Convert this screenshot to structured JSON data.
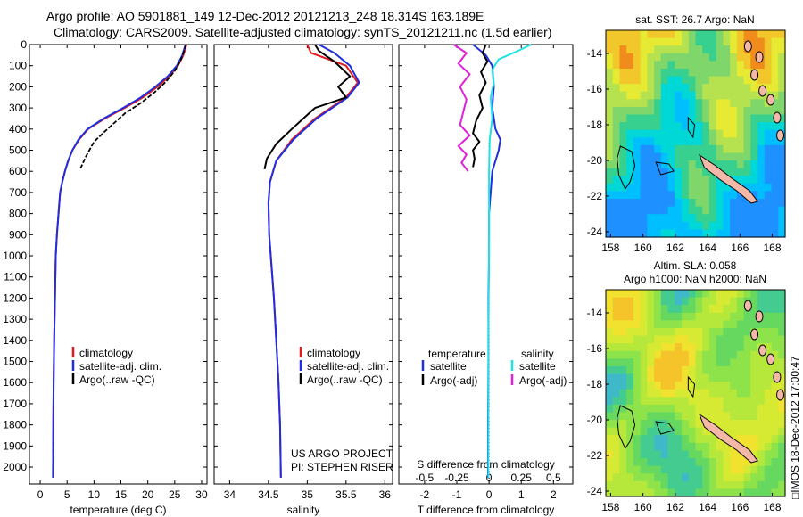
{
  "figure": {
    "title_line1": "Argo profile: AO 5901881_149 12-Dec-2012 20121213_248 18.314S 163.189E",
    "title_line2": "Climatology: CARS2009. Satellite-adjusted climatology: synTS_20121211.nc (1.5d earlier)",
    "side_stamp": "□IMOS 18-Dec-2012 17:00:47",
    "colors": {
      "climatology": "#e31a1c",
      "satellite": "#1f2fe0",
      "argo": "#000000",
      "salinity_satellite": "#22e0e8",
      "salinity_argo": "#e020d8"
    }
  },
  "chart_data": [
    {
      "type": "line",
      "panel": "temperature",
      "xlabel": "temperature (deg C)",
      "x_ticks": [
        0,
        5,
        10,
        15,
        20,
        25,
        30
      ],
      "xlim": [
        -2,
        31
      ],
      "ylim": [
        2080,
        0
      ],
      "y_ticks": [
        0,
        100,
        200,
        300,
        400,
        500,
        600,
        700,
        800,
        900,
        1000,
        1100,
        1200,
        1300,
        1400,
        1500,
        1600,
        1700,
        1800,
        1900,
        2000
      ],
      "legend": [
        "climatology",
        "satellite-adj. clim.",
        "Argo(..raw -QC)"
      ],
      "series": [
        {
          "name": "climatology",
          "x": [
            27.2,
            26.6,
            25.6,
            24.0,
            21.8,
            19.1,
            15.7,
            12.0,
            8.9,
            7.2,
            6.0,
            5.2,
            4.6,
            4.1,
            3.7,
            3.4,
            3.1,
            2.9,
            2.75,
            2.6,
            2.5,
            2.42,
            2.38
          ],
          "y": [
            0,
            50,
            100,
            150,
            200,
            250,
            300,
            350,
            400,
            450,
            500,
            550,
            600,
            650,
            700,
            800,
            900,
            1000,
            1200,
            1400,
            1600,
            1800,
            2050
          ]
        },
        {
          "name": "satellite-adj. clim.",
          "x": [
            27.0,
            26.4,
            25.4,
            23.7,
            21.4,
            18.7,
            15.4,
            11.8,
            8.8,
            7.1,
            6.0,
            5.2,
            4.6,
            4.1,
            3.7,
            3.4,
            3.1,
            2.9,
            2.75,
            2.6,
            2.5,
            2.42,
            2.38
          ],
          "y": [
            0,
            50,
            100,
            150,
            200,
            250,
            300,
            350,
            400,
            450,
            500,
            550,
            600,
            650,
            700,
            800,
            900,
            1000,
            1200,
            1400,
            1600,
            1800,
            2050
          ]
        },
        {
          "name": "Argo(..raw -QC)",
          "x": [
            27.1,
            26.8,
            26.1,
            25.0,
            23.4,
            21.3,
            18.8,
            15.8,
            12.5,
            10.0,
            8.5,
            7.5
          ],
          "y": [
            0,
            25,
            75,
            125,
            175,
            225,
            275,
            325,
            400,
            460,
            530,
            585
          ]
        }
      ]
    },
    {
      "type": "line",
      "panel": "salinity",
      "xlabel": "salinity",
      "x_ticks": [
        34,
        34.5,
        35,
        35.5,
        36
      ],
      "xlim": [
        33.8,
        36.1
      ],
      "ylim": [
        2080,
        0
      ],
      "legend": [
        "climatology",
        "satellite-adj. clim.",
        "Argo(..raw -QC)"
      ],
      "annotations": [
        "US ARGO PROJECT",
        "PI: STEPHEN RISER"
      ],
      "series": [
        {
          "name": "climatology",
          "x": [
            35.0,
            35.05,
            35.5,
            35.65,
            35.5,
            35.1,
            34.8,
            34.6,
            34.52,
            34.5,
            34.51,
            34.53,
            34.57,
            34.6,
            34.63,
            34.65,
            34.66
          ],
          "y": [
            0,
            40,
            100,
            180,
            250,
            350,
            450,
            550,
            650,
            750,
            900,
            1000,
            1200,
            1400,
            1600,
            1800,
            2050
          ]
        },
        {
          "name": "satellite-adj. clim.",
          "x": [
            35.15,
            35.35,
            35.55,
            35.67,
            35.52,
            35.12,
            34.82,
            34.6,
            34.52,
            34.5,
            34.51,
            34.53,
            34.57,
            34.6,
            34.63,
            34.65,
            34.66
          ],
          "y": [
            0,
            40,
            100,
            180,
            250,
            350,
            450,
            550,
            650,
            750,
            900,
            1000,
            1200,
            1400,
            1600,
            1800,
            2050
          ]
        },
        {
          "name": "Argo(..raw -QC)",
          "x": [
            35.1,
            35.15,
            35.35,
            35.55,
            35.4,
            35.5,
            35.1,
            34.8,
            34.6,
            34.48,
            34.45
          ],
          "y": [
            0,
            30,
            80,
            150,
            200,
            250,
            300,
            400,
            470,
            540,
            590
          ]
        }
      ]
    },
    {
      "type": "line",
      "panel": "difference",
      "xlabel": "T difference from climatology",
      "x_ticks": [
        -2,
        -1,
        0,
        1,
        2
      ],
      "secondary_xlabel": "S difference from climatology",
      "secondary_x_ticks": [
        "-0.5",
        "-0.25",
        "0",
        "0.25",
        "0.5"
      ],
      "xlim": [
        -2.8,
        2.6
      ],
      "ylim": [
        2080,
        0
      ],
      "legend": [
        {
          "group": "temperature",
          "items": [
            "satellite",
            "Argo(-adj)"
          ]
        },
        {
          "group": "salinity",
          "items": [
            "satellite",
            "Argo(-adj)"
          ]
        }
      ],
      "series": [
        {
          "name": "temperature satellite",
          "x": [
            -0.5,
            -0.1,
            0.1,
            0.15,
            0.1,
            0.2,
            0.35,
            0.3,
            0.2,
            0.1,
            0.05,
            0.0,
            0.0,
            -0.02,
            -0.02,
            -0.03,
            -0.03
          ],
          "y": [
            0,
            50,
            100,
            200,
            300,
            400,
            450,
            500,
            550,
            600,
            700,
            800,
            1000,
            1200,
            1500,
            1800,
            2050
          ]
        },
        {
          "name": "temperature Argo(-adj)",
          "x": [
            -0.1,
            -0.2,
            -0.05,
            -0.25,
            -0.1,
            -0.3,
            -0.2,
            -0.4,
            -0.5,
            -0.3,
            -0.5,
            -0.45,
            -0.5
          ],
          "y": [
            0,
            40,
            80,
            130,
            180,
            240,
            300,
            360,
            420,
            460,
            500,
            540,
            580
          ]
        },
        {
          "name": "salinity satellite",
          "x": [
            1.3,
            0.9,
            0.3,
            0.1,
            0.15,
            0.05,
            0.1,
            0.02,
            0.0,
            0.0,
            -0.02,
            -0.02
          ],
          "y": [
            0,
            30,
            70,
            120,
            180,
            250,
            350,
            450,
            600,
            900,
            1400,
            2050
          ]
        },
        {
          "name": "salinity Argo(-adj)",
          "x": [
            -1.1,
            -0.7,
            -0.95,
            -0.6,
            -0.9,
            -0.7,
            -0.8,
            -0.9,
            -0.6,
            -0.95,
            -0.7,
            -0.85,
            -0.65
          ],
          "y": [
            0,
            40,
            90,
            140,
            200,
            260,
            320,
            380,
            430,
            480,
            520,
            560,
            600
          ]
        }
      ]
    },
    {
      "type": "heatmap",
      "panel": "sst_map",
      "title": "sat. SST: 26.7 Argo: NaN",
      "x_ticks": [
        158,
        160,
        162,
        164,
        166,
        168
      ],
      "y_ticks": [
        -14,
        -16,
        -18,
        -20,
        -22,
        -24
      ],
      "xlim": [
        157.7,
        168.8
      ],
      "ylim": [
        -24.3,
        -12.7
      ],
      "argo_position": {
        "lon": 163.189,
        "lat": -18.314
      }
    },
    {
      "type": "heatmap",
      "panel": "sla_map",
      "title_line1": "Altim. SLA: 0.058",
      "title_line2": "Argo h1000: NaN h2000: NaN",
      "x_ticks": [
        158,
        160,
        162,
        164,
        166,
        168
      ],
      "y_ticks": [
        -14,
        -16,
        -18,
        -20,
        -22,
        -24
      ],
      "xlim": [
        157.7,
        168.8
      ],
      "ylim": [
        -24.3,
        -12.7
      ]
    }
  ]
}
